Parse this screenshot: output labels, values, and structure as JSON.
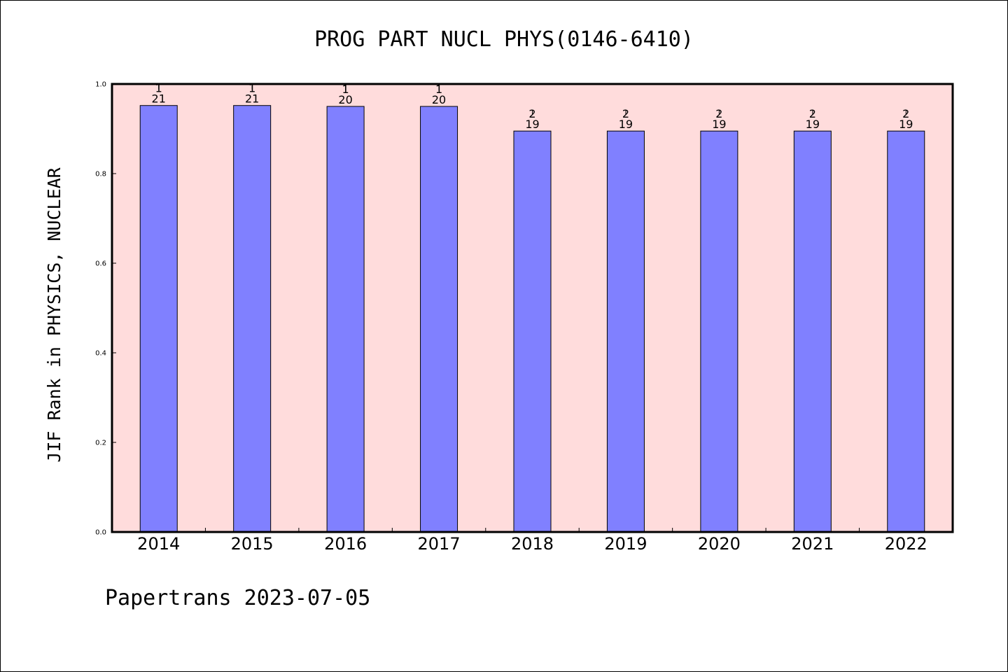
{
  "chart_data": {
    "type": "bar",
    "title": "PROG PART NUCL PHYS(0146-6410)",
    "ylabel": "JIF Rank in PHYSICS, NUCLEAR",
    "xlabel": "",
    "categories": [
      "2014",
      "2015",
      "2016",
      "2017",
      "2018",
      "2019",
      "2020",
      "2021",
      "2022"
    ],
    "values": [
      0.952,
      0.952,
      0.95,
      0.95,
      0.895,
      0.895,
      0.895,
      0.895,
      0.895
    ],
    "ranks": [
      "1",
      "1",
      "1",
      "1",
      "2",
      "2",
      "2",
      "2",
      "2"
    ],
    "totals": [
      "21",
      "21",
      "20",
      "20",
      "19",
      "19",
      "19",
      "19",
      "19"
    ],
    "ylim": [
      0,
      1.0
    ],
    "yticks": [
      "0.0",
      "0.2",
      "0.4",
      "0.6",
      "0.8",
      "1.0"
    ],
    "grid": false,
    "colors": {
      "bar_fill": "#8080ff",
      "plot_background": "#ffdcdc",
      "axis": "#000000"
    }
  },
  "footer": {
    "text": "Papertrans 2023-07-05"
  }
}
